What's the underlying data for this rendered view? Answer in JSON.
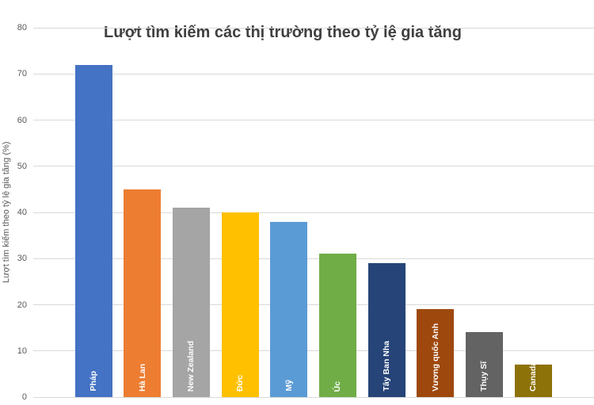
{
  "chart_data": {
    "type": "bar",
    "title": "Lượt tìm kiếm các thị trường theo tỷ lệ gia tăng",
    "xlabel": "",
    "ylabel": "Lượt tìm kiếm theo tỷ lệ gia tăng (%)",
    "categories": [
      "Pháp",
      "Hà Lan",
      "New Zealand",
      "Đức",
      "Mỹ",
      "Úc",
      "Tây Ban Nha",
      "Vương quốc Anh",
      "Thụy Sĩ",
      "Canada"
    ],
    "values": [
      72,
      45,
      41,
      40,
      38,
      31,
      29,
      19,
      14,
      7
    ],
    "bar_colors": [
      "#4472C4",
      "#ED7D31",
      "#A5A5A5",
      "#FFC000",
      "#5B9BD5",
      "#70AD47",
      "#264478",
      "#9E480E",
      "#636363",
      "#8D7209"
    ],
    "yticks": [
      0,
      10,
      20,
      30,
      40,
      50,
      60,
      70,
      80
    ],
    "ylim": [
      0,
      80
    ],
    "grid": true,
    "legend": false,
    "bar_label_position": "inside-bottom-rotated",
    "colors": {
      "title": "#404040",
      "axis_text": "#595959",
      "gridline": "#D9D9D9",
      "bar_label": "#FFFFFF",
      "background": "#FFFFFF"
    }
  }
}
